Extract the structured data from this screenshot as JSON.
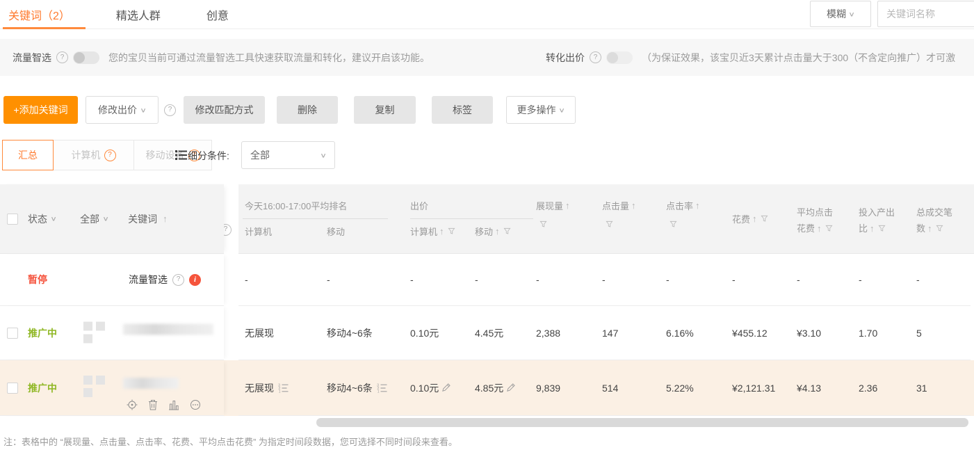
{
  "tabs": {
    "items": [
      {
        "label": "关键词（2）",
        "active": true
      },
      {
        "label": "精选人群",
        "active": false
      },
      {
        "label": "创意",
        "active": false
      }
    ]
  },
  "search": {
    "fuzzy": "模糊",
    "placeholder": "关键词名称"
  },
  "smart_traffic": {
    "label": "流量智选",
    "enabled": false,
    "desc": "您的宝贝当前可通过流量智选工具快速获取流量和转化，建议开启该功能。"
  },
  "conversion_bid": {
    "label": "转化出价",
    "enabled": false,
    "desc": "（为保证效果，该宝贝近3天累计点击量大于300（不含定向推广）才可激"
  },
  "toolbar": {
    "add": "+添加关键词",
    "modify_bid": "修改出价",
    "modify_match": "修改匹配方式",
    "delete": "删除",
    "copy": "复制",
    "tag": "标签",
    "more": "更多操作"
  },
  "device_tabs": {
    "summary": "汇总",
    "pc": "计算机",
    "mobile": "移动设备",
    "segment_label": "细分条件:",
    "segment_value": "全部"
  },
  "table": {
    "fixed_header": {
      "status": "状态",
      "status_filter": "全部",
      "keyword": "关键词"
    },
    "columns": [
      {
        "id": "rank_pc",
        "group": "今天16:00-17:00平均排名",
        "label": "计算机"
      },
      {
        "id": "rank_mobile",
        "group": "今天16:00-17:00平均排名",
        "label": "移动"
      },
      {
        "id": "bid_pc",
        "group": "出价",
        "label": "计算机",
        "sort": true,
        "filter": true
      },
      {
        "id": "bid_mobile",
        "group": "出价",
        "label": "移动",
        "sort": true,
        "filter": true
      },
      {
        "id": "impressions",
        "label": "展现量",
        "sort": true,
        "filter": "below"
      },
      {
        "id": "clicks",
        "label": "点击量",
        "sort": true,
        "filter": "below"
      },
      {
        "id": "ctr",
        "label": "点击率",
        "sort": true,
        "filter": "below"
      },
      {
        "id": "cost",
        "label": "花费",
        "sort": true,
        "filter": true,
        "middle": true
      },
      {
        "id": "avg_cost",
        "label": "平均点击",
        "label2": "花费",
        "sort": true,
        "filter": true
      },
      {
        "id": "roi",
        "label": "投入产出",
        "label2": "比",
        "sort": true,
        "filter": true
      },
      {
        "id": "orders",
        "label": "总成交笔",
        "label2": "数",
        "sort": true,
        "filter": true
      }
    ],
    "rows": [
      {
        "type": "smart",
        "checkbox": false,
        "status": "暂停",
        "status_type": "paused",
        "keyword": "流量智选",
        "help_icon": true,
        "info_badge": true,
        "values": {
          "rank_pc": "-",
          "rank_mobile": "-",
          "bid_pc": "-",
          "bid_mobile": "-",
          "impressions": "-",
          "clicks": "-",
          "ctr": "-",
          "cost": "-",
          "avg_cost": "-",
          "roi": "-",
          "orders": "-"
        }
      },
      {
        "type": "normal",
        "checkbox": true,
        "status": "推广中",
        "status_type": "active",
        "keyword_redacted": true,
        "values": {
          "rank_pc": "无展现",
          "rank_mobile": "移动4~6条",
          "bid_pc": "0.10元",
          "bid_mobile": "4.45元",
          "impressions": "2,388",
          "clicks": "147",
          "ctr": "6.16%",
          "cost": "¥455.12",
          "avg_cost": "¥3.10",
          "roi": "1.70",
          "orders": "5"
        }
      },
      {
        "type": "normal",
        "checkbox": true,
        "status": "推广中",
        "status_type": "active",
        "keyword_redacted": true,
        "hover": true,
        "row_actions": true,
        "rank_icons": true,
        "bid_editable": true,
        "values": {
          "rank_pc": "无展现",
          "rank_mobile": "移动4~6条",
          "bid_pc": "0.10元",
          "bid_mobile": "4.85元",
          "impressions": "9,839",
          "clicks": "514",
          "ctr": "5.22%",
          "cost": "¥2,121.31",
          "avg_cost": "¥4.13",
          "roi": "2.36",
          "orders": "31"
        }
      }
    ]
  },
  "note": {
    "text": "注：表格中的 “展现量、点击量、点击率、花费、平均点击花费” 为指定时间段数据，您可选择不同时间段来查看。"
  }
}
